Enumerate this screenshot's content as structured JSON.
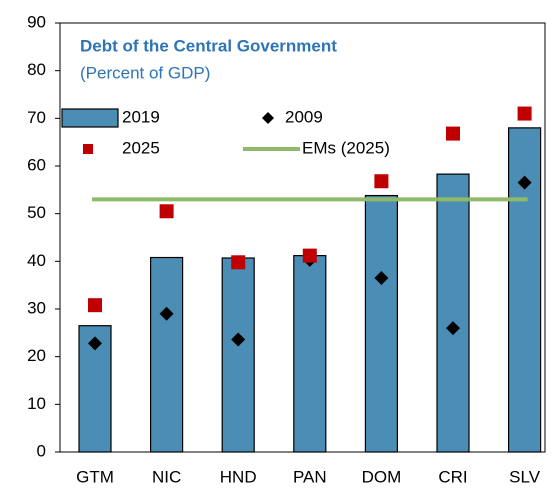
{
  "chart_data": {
    "type": "bar",
    "title": "Debt of the Central Government",
    "subtitle": "(Percent of GDP)",
    "categories": [
      "GTM",
      "NIC",
      "HND",
      "PAN",
      "DOM",
      "CRI",
      "SLV"
    ],
    "series": [
      {
        "name": "2019",
        "type": "bar",
        "color": "#4b8db5",
        "values": [
          26.5,
          40.8,
          40.7,
          41.2,
          53.8,
          58.3,
          68
        ]
      },
      {
        "name": "2009",
        "type": "marker",
        "marker": "diamond",
        "color": "#000000",
        "values": [
          22.8,
          29,
          23.6,
          40.3,
          36.5,
          26,
          56.5
        ]
      },
      {
        "name": "2025",
        "type": "marker",
        "marker": "square",
        "color": "#c00000",
        "values": [
          30.8,
          50.5,
          39.8,
          41.2,
          56.8,
          66.8,
          71
        ]
      },
      {
        "name": "EMs (2025)",
        "type": "hline",
        "color": "#8fba6a",
        "value": 53
      }
    ],
    "ylim": [
      0,
      90
    ],
    "yticks": [
      0,
      10,
      20,
      30,
      40,
      50,
      60,
      70,
      80,
      90
    ]
  }
}
